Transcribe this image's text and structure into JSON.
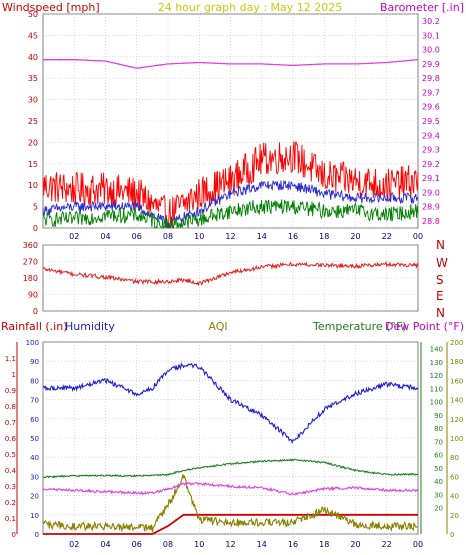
{
  "header": {
    "title": "24 hour graph day : May 12 2025",
    "left_label": "Windspeed [mph]",
    "right_label": "Barometer [.in]"
  },
  "direction_labels": [
    "N",
    "W",
    "S",
    "E",
    "N"
  ],
  "bottom_labels": {
    "rainfall": "Rainfall (.in)",
    "humidity": "Humidity",
    "aqi": "AQI",
    "temperature": "Temperature (°F)",
    "dewpoint": "Dew Point (°F)"
  },
  "colors": {
    "wind_gust": "#ff0000",
    "wind_avg": "#2a2ad8",
    "wind_speed": "#008000",
    "barometer": "#e040e0",
    "direction": "#e02020",
    "rainfall": "#cc0000",
    "humidity": "#2020d0",
    "aqi": "#8b8000",
    "temperature": "#208020",
    "dewpoint": "#e040e0",
    "grid": "#c0c0c0"
  },
  "chart_data": [
    {
      "type": "line",
      "name": "wind-barometer",
      "title": "24 hour graph day : May 12 2025",
      "xlabel": "",
      "x_ticks": [
        "02",
        "04",
        "06",
        "08",
        "10",
        "12",
        "14",
        "16",
        "18",
        "20",
        "22",
        "00"
      ],
      "ylabel_left": "Windspeed [mph]",
      "ylim_left": [
        0,
        50
      ],
      "y_ticks_left": [
        0,
        5,
        10,
        15,
        20,
        25,
        30,
        35,
        40,
        45,
        50
      ],
      "ylabel_right": "Barometer [.in]",
      "ylim_right": [
        28.75,
        30.25
      ],
      "y_ticks_right": [
        28.8,
        28.9,
        29.0,
        29.1,
        29.2,
        29.3,
        29.4,
        29.5,
        29.6,
        29.7,
        29.8,
        29.9,
        30.0,
        30.1,
        30.2
      ],
      "hours": [
        0,
        2,
        4,
        6,
        8,
        10,
        12,
        14,
        16,
        18,
        20,
        22,
        24
      ],
      "series": [
        {
          "key": "gust",
          "axis": "left",
          "values": [
            10,
            9,
            9,
            8,
            3,
            8,
            11,
            16,
            17,
            12,
            11,
            10,
            11
          ]
        },
        {
          "key": "avg",
          "axis": "left",
          "values": [
            4,
            5,
            5,
            5,
            1,
            4,
            8,
            10,
            10,
            8,
            7,
            7,
            7
          ]
        },
        {
          "key": "speed",
          "axis": "left",
          "values": [
            2,
            2,
            3,
            3,
            0.5,
            2,
            4,
            5,
            5,
            4,
            4,
            3,
            4
          ]
        },
        {
          "key": "barometer",
          "axis": "right",
          "values": [
            29.93,
            29.93,
            29.92,
            29.87,
            29.9,
            29.91,
            29.9,
            29.9,
            29.89,
            29.9,
            29.9,
            29.91,
            29.93
          ]
        }
      ]
    },
    {
      "type": "line",
      "name": "wind-direction",
      "x_ticks": [
        "02",
        "04",
        "06",
        "08",
        "10",
        "12",
        "14",
        "16",
        "18",
        "20",
        "22",
        "00"
      ],
      "ylim": [
        0,
        360
      ],
      "y_ticks": [
        0,
        90,
        180,
        270,
        360
      ],
      "hours": [
        0,
        2,
        4,
        6,
        8,
        9,
        10,
        12,
        14,
        16,
        18,
        20,
        22,
        24
      ],
      "series": [
        {
          "key": "direction",
          "values": [
            230,
            200,
            185,
            160,
            160,
            170,
            150,
            210,
            240,
            255,
            250,
            245,
            255,
            250
          ]
        }
      ]
    },
    {
      "type": "line",
      "name": "rain-humidity-aqi-temp",
      "x_ticks": [
        "02",
        "04",
        "06",
        "08",
        "10",
        "12",
        "14",
        "16",
        "18",
        "20",
        "22",
        "00"
      ],
      "ylabel_left": "Rainfall (.in)",
      "ylim_left": [
        0,
        1.2
      ],
      "y_ticks_left": [
        0,
        0.1,
        0.2,
        0.3,
        0.4,
        0.5,
        0.6,
        0.7,
        0.8,
        0.9,
        1.0,
        1.1
      ],
      "ylim_humidity": [
        0,
        100
      ],
      "y_ticks_humidity": [
        0,
        10,
        20,
        30,
        40,
        50,
        60,
        70,
        80,
        90,
        100
      ],
      "ylim_temp": [
        0,
        145
      ],
      "y_ticks_temp": [
        20,
        30,
        40,
        50,
        60,
        70,
        80,
        90,
        100,
        110,
        120,
        130,
        140
      ],
      "ylim_aqi": [
        0,
        200
      ],
      "y_ticks_aqi": [
        0,
        20,
        40,
        60,
        80,
        100,
        120,
        140,
        160,
        180,
        200
      ],
      "hours": [
        0,
        2,
        4,
        6,
        7,
        8,
        9,
        10,
        12,
        14,
        16,
        18,
        20,
        22,
        24
      ],
      "series": [
        {
          "key": "rainfall",
          "axis": "rain",
          "values": [
            0,
            0,
            0,
            0,
            0,
            0.05,
            0.12,
            0.12,
            0.12,
            0.12,
            0.12,
            0.12,
            0.12,
            0.12,
            0.12
          ]
        },
        {
          "key": "humidity",
          "axis": "humidity",
          "values": [
            76,
            76,
            80,
            73,
            76,
            85,
            88,
            87,
            70,
            62,
            48,
            65,
            73,
            78,
            76
          ]
        },
        {
          "key": "aqi",
          "axis": "aqi",
          "values": [
            10,
            8,
            8,
            7,
            6,
            30,
            60,
            15,
            12,
            12,
            12,
            25,
            10,
            8,
            8
          ]
        },
        {
          "key": "temperature",
          "axis": "temp",
          "values": [
            43,
            44,
            44,
            44,
            44,
            45,
            48,
            50,
            53,
            55,
            56,
            54,
            48,
            45,
            45
          ]
        },
        {
          "key": "dewpoint",
          "axis": "temp",
          "values": [
            34,
            33,
            32,
            31,
            31,
            34,
            38,
            38,
            36,
            35,
            30,
            34,
            35,
            33,
            33
          ]
        }
      ]
    }
  ]
}
